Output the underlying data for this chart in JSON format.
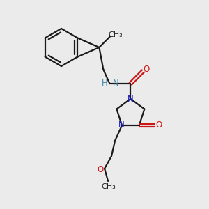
{
  "bg_color": "#ebebeb",
  "bond_color": "#1a1a1a",
  "nitrogen_color": "#1515cc",
  "oxygen_color": "#cc1515",
  "hn_color": "#4488aa",
  "line_width": 1.6,
  "font_size_atom": 8.5,
  "fig_size": [
    3.0,
    3.0
  ],
  "dpi": 100,
  "xlim": [
    0,
    3.0
  ],
  "ylim": [
    0,
    3.0
  ]
}
